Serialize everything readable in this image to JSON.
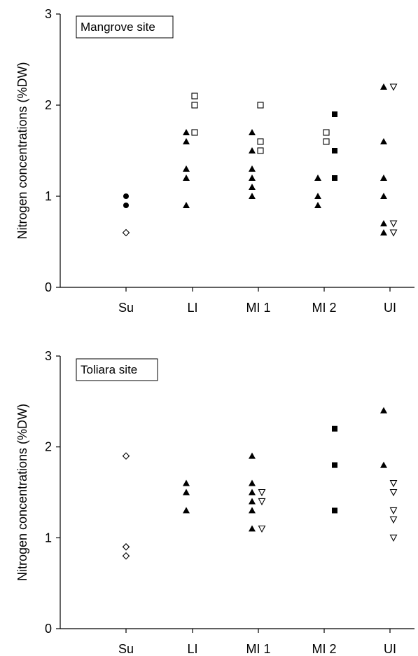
{
  "chart_data": [
    {
      "type": "scatter",
      "title": "Mangrove site",
      "ylabel": "Nitrogen concentrations (%DW)",
      "xlabel": "",
      "categories": [
        "Su",
        "LI",
        "MI 1",
        "MI 2",
        "UI"
      ],
      "ylim": [
        0,
        3
      ],
      "yticks": [
        "0",
        "1",
        "2",
        "3"
      ],
      "grid": false,
      "series": [
        {
          "marker": "filled-circle",
          "points": [
            {
              "x": "Su",
              "y": 1.0
            },
            {
              "x": "Su",
              "y": 0.9
            }
          ]
        },
        {
          "marker": "open-diamond",
          "points": [
            {
              "x": "Su",
              "y": 0.6
            }
          ]
        },
        {
          "marker": "filled-triangle",
          "points": [
            {
              "x": "LI",
              "y": 1.7
            },
            {
              "x": "LI",
              "y": 1.6
            },
            {
              "x": "LI",
              "y": 1.3
            },
            {
              "x": "LI",
              "y": 1.2
            },
            {
              "x": "LI",
              "y": 0.9
            },
            {
              "x": "MI 1",
              "y": 1.7
            },
            {
              "x": "MI 1",
              "y": 1.5
            },
            {
              "x": "MI 1",
              "y": 1.3
            },
            {
              "x": "MI 1",
              "y": 1.2
            },
            {
              "x": "MI 1",
              "y": 1.1
            },
            {
              "x": "MI 1",
              "y": 1.0
            },
            {
              "x": "MI 2",
              "y": 1.2
            },
            {
              "x": "MI 2",
              "y": 1.0
            },
            {
              "x": "MI 2",
              "y": 0.9
            },
            {
              "x": "UI",
              "y": 2.2
            },
            {
              "x": "UI",
              "y": 1.6
            },
            {
              "x": "UI",
              "y": 1.2
            },
            {
              "x": "UI",
              "y": 1.0
            },
            {
              "x": "UI",
              "y": 0.7
            },
            {
              "x": "UI",
              "y": 0.6
            }
          ]
        },
        {
          "marker": "open-square",
          "points": [
            {
              "x": "LI",
              "y": 2.1
            },
            {
              "x": "LI",
              "y": 2.0
            },
            {
              "x": "LI",
              "y": 1.7
            },
            {
              "x": "MI 1",
              "y": 2.0
            },
            {
              "x": "MI 1",
              "y": 1.6
            },
            {
              "x": "MI 1",
              "y": 1.5
            },
            {
              "x": "MI 2",
              "y": 1.7
            },
            {
              "x": "MI 2",
              "y": 1.6
            }
          ]
        },
        {
          "marker": "filled-square",
          "points": [
            {
              "x": "MI 2",
              "y": 1.9
            },
            {
              "x": "MI 2",
              "y": 1.5
            },
            {
              "x": "MI 2",
              "y": 1.2
            }
          ]
        },
        {
          "marker": "open-triangle-down",
          "points": [
            {
              "x": "UI",
              "y": 2.2
            },
            {
              "x": "UI",
              "y": 0.7
            },
            {
              "x": "UI",
              "y": 0.6
            }
          ]
        }
      ]
    },
    {
      "type": "scatter",
      "title": "Toliara site",
      "ylabel": "Nitrogen concentrations (%DW)",
      "xlabel": "",
      "categories": [
        "Su",
        "LI",
        "MI 1",
        "MI 2",
        "UI"
      ],
      "ylim": [
        0,
        3
      ],
      "yticks": [
        "0",
        "1",
        "2",
        "3"
      ],
      "grid": false,
      "series": [
        {
          "marker": "open-diamond",
          "points": [
            {
              "x": "Su",
              "y": 1.9
            },
            {
              "x": "Su",
              "y": 0.9
            },
            {
              "x": "Su",
              "y": 0.8
            }
          ]
        },
        {
          "marker": "filled-triangle",
          "points": [
            {
              "x": "LI",
              "y": 1.6
            },
            {
              "x": "LI",
              "y": 1.5
            },
            {
              "x": "LI",
              "y": 1.3
            },
            {
              "x": "MI 1",
              "y": 1.9
            },
            {
              "x": "MI 1",
              "y": 1.6
            },
            {
              "x": "MI 1",
              "y": 1.5
            },
            {
              "x": "MI 1",
              "y": 1.4
            },
            {
              "x": "MI 1",
              "y": 1.3
            },
            {
              "x": "MI 1",
              "y": 1.1
            },
            {
              "x": "UI",
              "y": 2.4
            },
            {
              "x": "UI",
              "y": 1.8
            }
          ]
        },
        {
          "marker": "open-triangle-down",
          "points": [
            {
              "x": "MI 1",
              "y": 1.5
            },
            {
              "x": "MI 1",
              "y": 1.4
            },
            {
              "x": "MI 1",
              "y": 1.1
            },
            {
              "x": "UI",
              "y": 1.6
            },
            {
              "x": "UI",
              "y": 1.5
            },
            {
              "x": "UI",
              "y": 1.3
            },
            {
              "x": "UI",
              "y": 1.2
            },
            {
              "x": "UI",
              "y": 1.0
            }
          ]
        },
        {
          "marker": "filled-square",
          "points": [
            {
              "x": "MI 2",
              "y": 2.2
            },
            {
              "x": "MI 2",
              "y": 1.8
            },
            {
              "x": "MI 2",
              "y": 1.3
            }
          ]
        }
      ]
    }
  ]
}
